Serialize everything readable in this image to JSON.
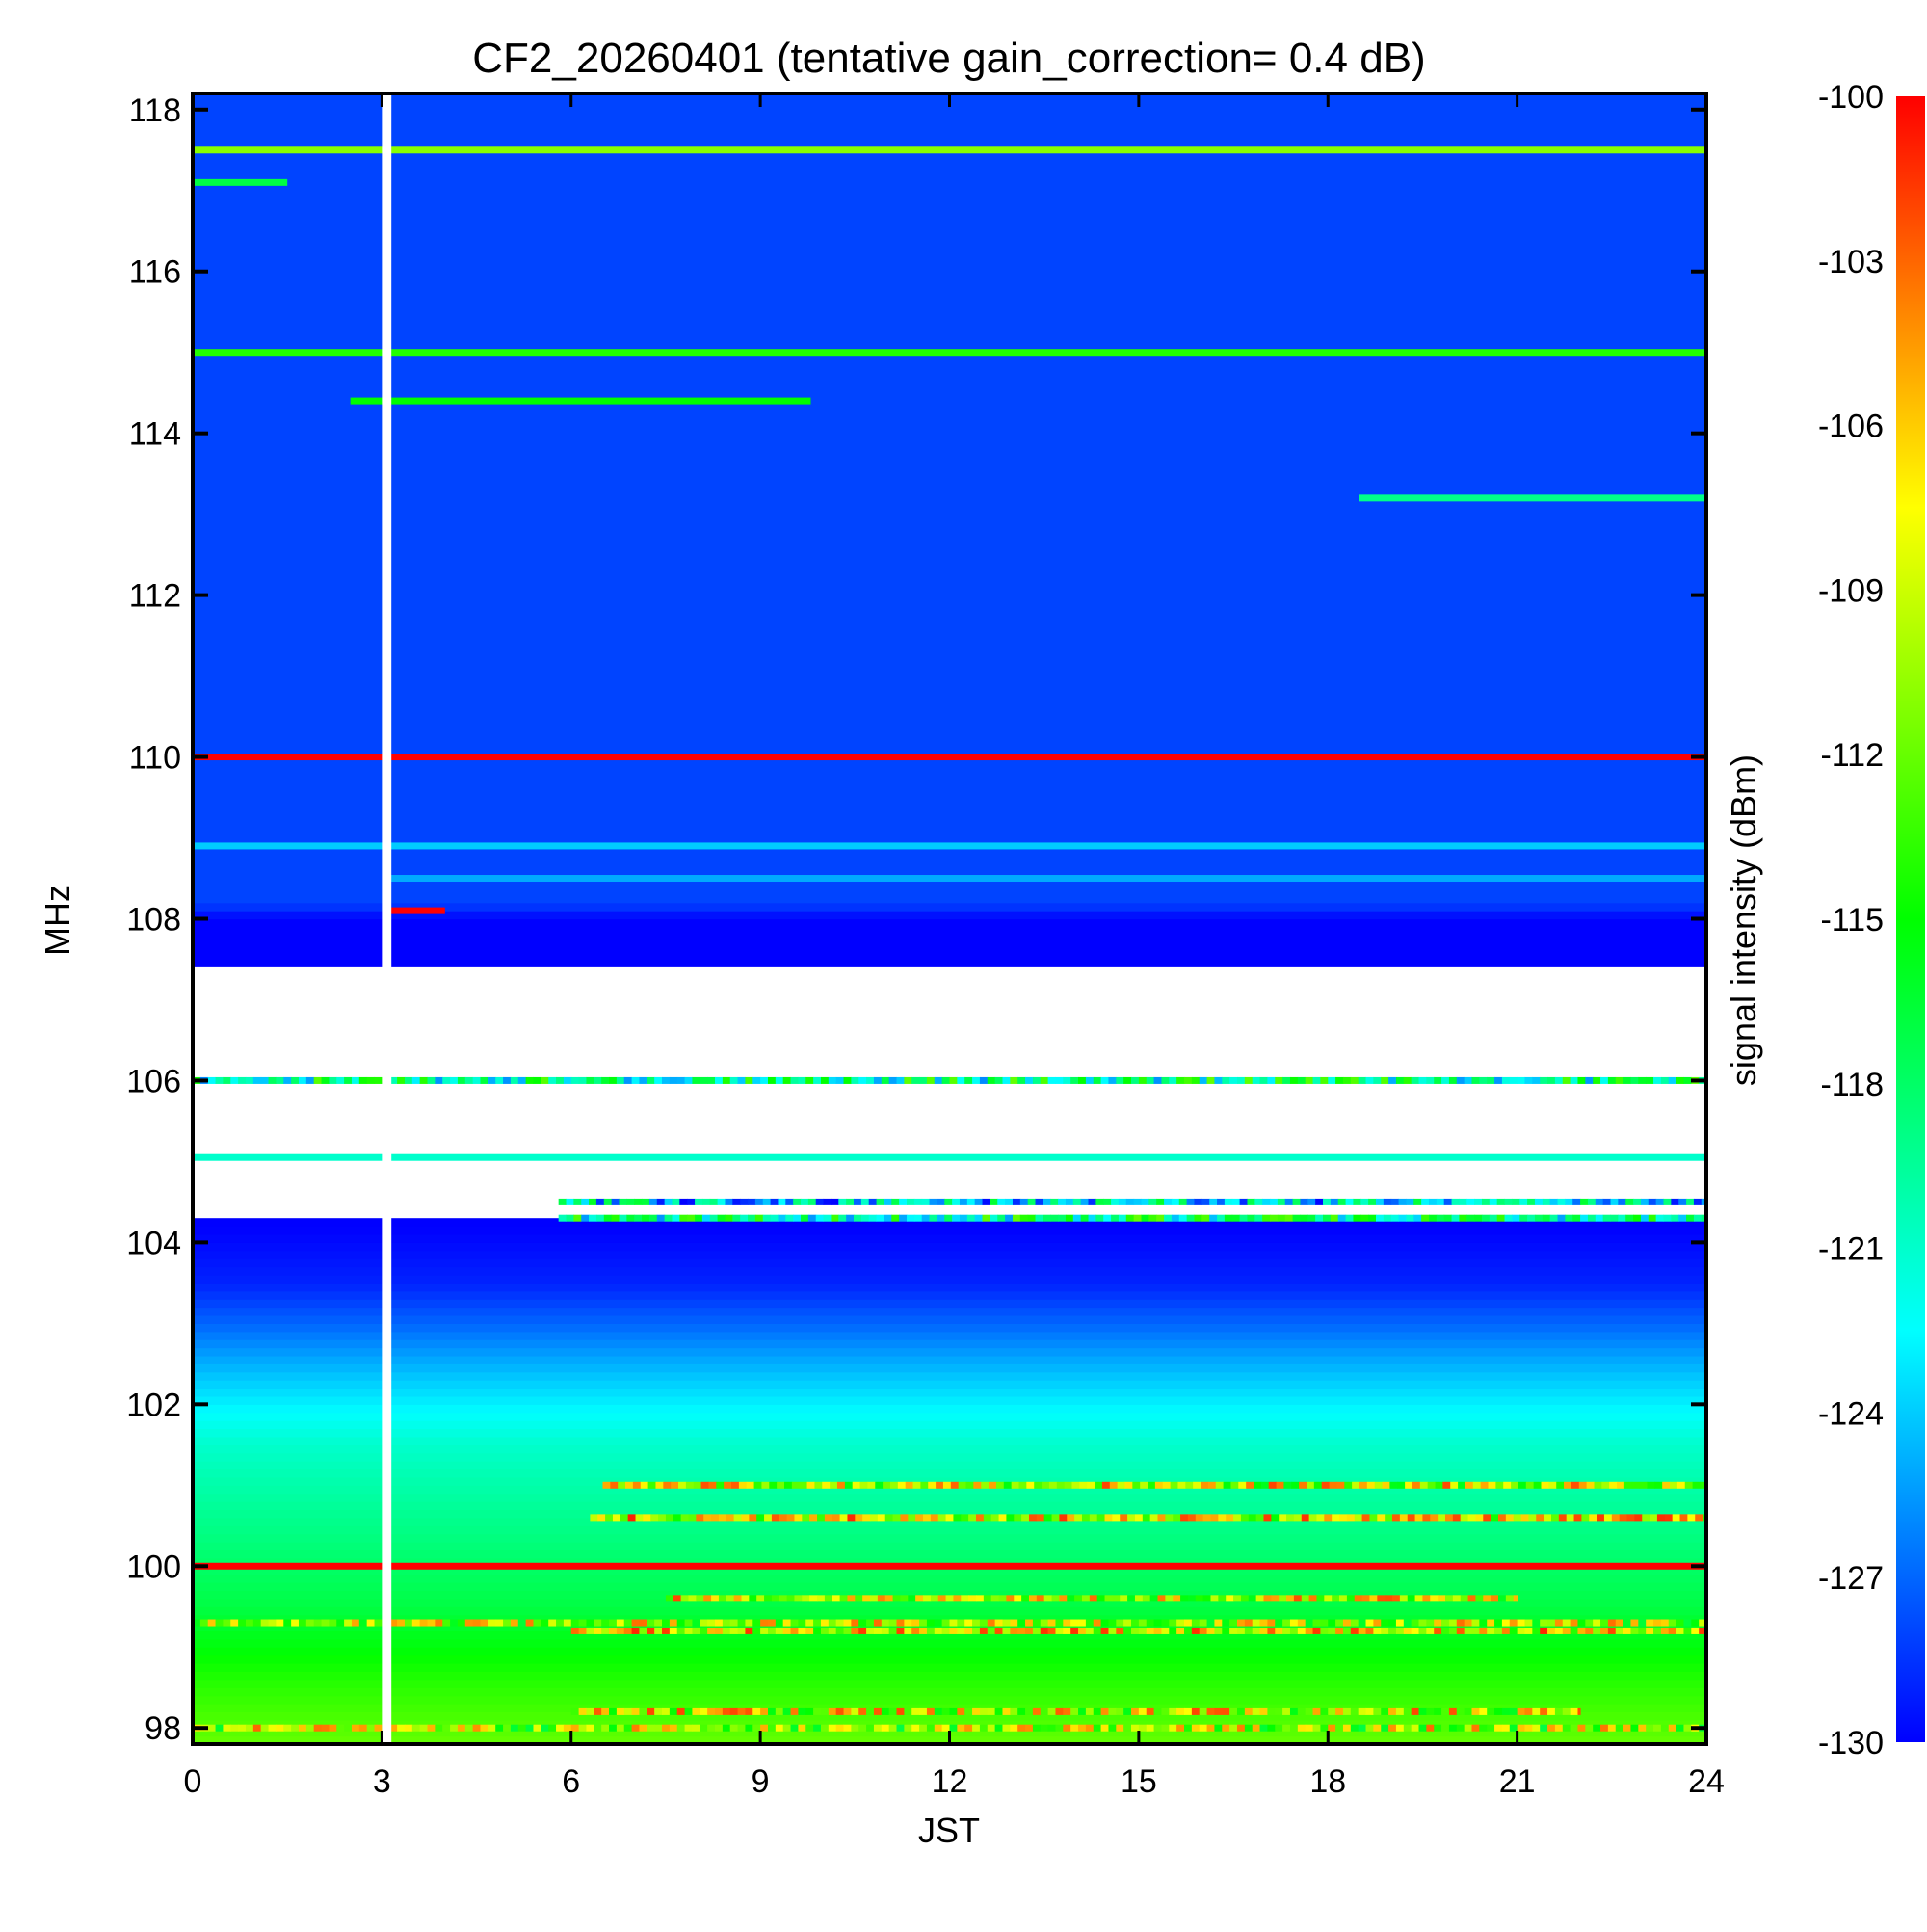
{
  "chart_data": {
    "type": "heatmap",
    "title": "CF2_20260401 (tentative gain_correction=  0.4 dB)",
    "xlabel": "JST",
    "ylabel": "MHz",
    "colorbar_label": "signal intensity (dBm)",
    "xlim": [
      0,
      24
    ],
    "ylim": [
      97.8,
      118.2
    ],
    "x_ticks": [
      0,
      3,
      6,
      9,
      12,
      15,
      18,
      21,
      24
    ],
    "y_ticks": [
      98,
      100,
      102,
      104,
      106,
      108,
      110,
      112,
      114,
      116,
      118
    ],
    "colorbar_range": [
      -130,
      -100
    ],
    "colorbar_ticks": [
      -100,
      -103,
      -106,
      -109,
      -112,
      -115,
      -118,
      -121,
      -124,
      -127,
      -130
    ],
    "colormap": [
      "#0000ff",
      "#00ffff",
      "#00ff00",
      "#ffff00",
      "#ff0000"
    ],
    "background_level_by_freq": [
      {
        "mhz": 97.8,
        "dbm": -112
      },
      {
        "mhz": 98.6,
        "dbm": -114
      },
      {
        "mhz": 99.5,
        "dbm": -117
      },
      {
        "mhz": 100.5,
        "dbm": -119
      },
      {
        "mhz": 101.5,
        "dbm": -121
      },
      {
        "mhz": 102.3,
        "dbm": -124
      },
      {
        "mhz": 103.0,
        "dbm": -127
      },
      {
        "mhz": 103.5,
        "dbm": -129
      },
      {
        "mhz": 104.2,
        "dbm": -130
      },
      {
        "mhz": 108.0,
        "dbm": -130
      },
      {
        "mhz": 108.2,
        "dbm": -128
      },
      {
        "mhz": 118.2,
        "dbm": -128
      }
    ],
    "no_data_time_gaps": [
      [
        3.0,
        3.15
      ]
    ],
    "no_data_regions": [
      {
        "t_start": 0,
        "t_end": 24,
        "f_low": 104.3,
        "f_high": 107.4,
        "coverage": "mostly empty"
      }
    ],
    "stations": [
      {
        "mhz": 110.0,
        "dbm": -100,
        "t_start": 0,
        "t_end": 24
      },
      {
        "mhz": 100.0,
        "dbm": -100,
        "t_start": 0,
        "t_end": 24
      },
      {
        "mhz": 117.5,
        "dbm": -111,
        "t_start": 0,
        "t_end": 24
      },
      {
        "mhz": 115.0,
        "dbm": -114,
        "t_start": 0,
        "t_end": 24
      },
      {
        "mhz": 114.4,
        "dbm": -115,
        "t_start": 2.5,
        "t_end": 9.8
      },
      {
        "mhz": 113.2,
        "dbm": -119,
        "t_start": 18.5,
        "t_end": 24
      },
      {
        "mhz": 108.9,
        "dbm": -124,
        "t_start": 0,
        "t_end": 24
      },
      {
        "mhz": 108.5,
        "dbm": -125,
        "t_start": 3.1,
        "t_end": 24
      },
      {
        "mhz": 117.1,
        "dbm": -117,
        "t_start": 0,
        "t_end": 1.5
      },
      {
        "mhz": 108.1,
        "dbm": -100,
        "t_start": 3.1,
        "t_end": 4.0
      },
      {
        "mhz": 106.0,
        "dbm": -112,
        "t_start": 0,
        "t_end": 24,
        "pattern": "patchy"
      },
      {
        "mhz": 105.05,
        "dbm": -121,
        "t_start": 0,
        "t_end": 24
      },
      {
        "mhz": 104.5,
        "dbm": -116,
        "t_start": 5.8,
        "t_end": 24,
        "pattern": "patchy"
      },
      {
        "mhz": 104.3,
        "dbm": -112,
        "t_start": 5.8,
        "t_end": 24,
        "pattern": "patchy"
      },
      {
        "mhz": 101.0,
        "dbm": -102,
        "t_start": 6.5,
        "t_end": 24,
        "pattern": "patchy"
      },
      {
        "mhz": 100.6,
        "dbm": -101,
        "t_start": 6.3,
        "t_end": 24,
        "pattern": "patchy"
      },
      {
        "mhz": 99.6,
        "dbm": -102,
        "t_start": 7.5,
        "t_end": 21,
        "pattern": "patchy"
      },
      {
        "mhz": 99.3,
        "dbm": -103,
        "t_start": 0,
        "t_end": 24,
        "pattern": "patchy"
      },
      {
        "mhz": 99.2,
        "dbm": -101,
        "t_start": 6.0,
        "t_end": 24,
        "pattern": "patchy"
      },
      {
        "mhz": 98.2,
        "dbm": -102,
        "t_start": 6.0,
        "t_end": 22,
        "pattern": "patchy"
      },
      {
        "mhz": 98.0,
        "dbm": -103,
        "t_start": 0,
        "t_end": 24,
        "pattern": "patchy"
      }
    ]
  }
}
